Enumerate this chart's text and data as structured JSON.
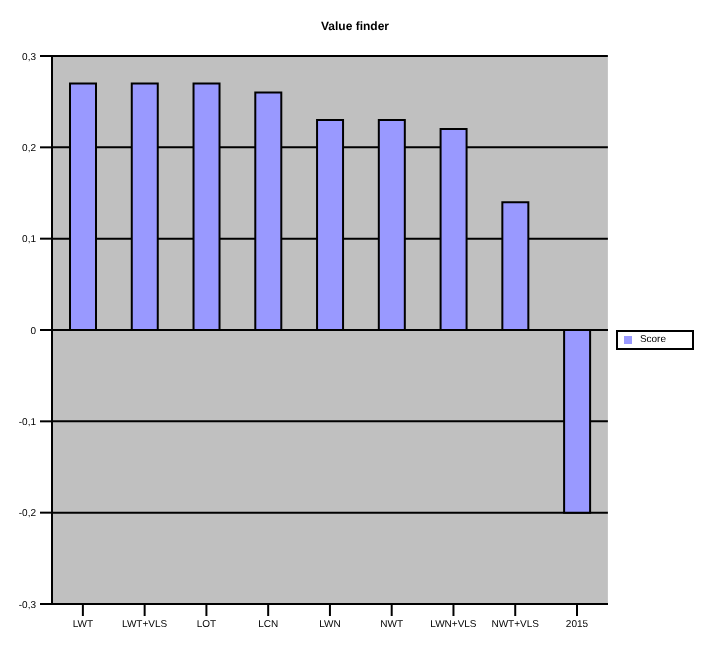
{
  "chart_data": {
    "type": "bar",
    "title": "Value finder",
    "categories": [
      "LWT",
      "LWT+VLS",
      "LOT",
      "LCN",
      "LWN",
      "NWT",
      "LWN+VLS",
      "NWT+VLS",
      "2015"
    ],
    "series": [
      {
        "name": "Score",
        "color": "#9999ff",
        "values": [
          0.27,
          0.27,
          0.27,
          0.26,
          0.23,
          0.23,
          0.22,
          0.14,
          -0.2
        ]
      }
    ],
    "ylim": [
      -0.3,
      0.3
    ],
    "yticks": [
      {
        "value": -0.3,
        "label": "-0,3"
      },
      {
        "value": -0.2,
        "label": "-0,2"
      },
      {
        "value": -0.1,
        "label": "-0,1"
      },
      {
        "value": 0,
        "label": "0"
      },
      {
        "value": 0.1,
        "label": "0,1"
      },
      {
        "value": 0.2,
        "label": "0,2"
      },
      {
        "value": 0.3,
        "label": "0,3"
      }
    ],
    "grid": "y",
    "legend": "right"
  }
}
